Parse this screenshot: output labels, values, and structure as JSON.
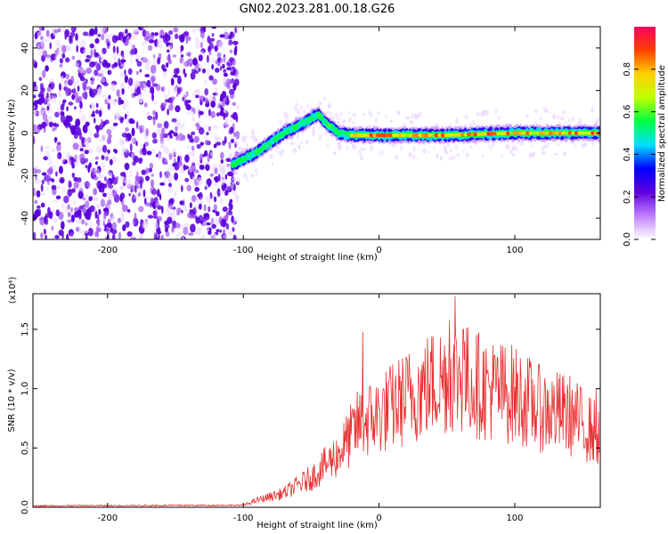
{
  "figure_title": "GN02.2023.281.00.18.G26",
  "colors": {
    "snr_line": "#e83030",
    "axis": "#000000",
    "noise_low": "#e8d4ff",
    "noise_high": "#5a00dc"
  },
  "chart_data": [
    {
      "type": "heatmap",
      "xlabel": "Height of straight line (km)",
      "ylabel": "Frequency (Hz)",
      "xlim": [
        -255,
        163
      ],
      "ylim": [
        -50,
        50
      ],
      "xticks": [
        -200,
        -100,
        0,
        100
      ],
      "yticks": [
        -40,
        -20,
        0,
        20,
        40
      ],
      "grid": false,
      "signal_ridge": [
        {
          "x": -108,
          "y": -15
        },
        {
          "x": -90,
          "y": -9
        },
        {
          "x": -70,
          "y": 0
        },
        {
          "x": -55,
          "y": 5
        },
        {
          "x": -45,
          "y": 9
        },
        {
          "x": -38,
          "y": 4
        },
        {
          "x": -30,
          "y": 0
        },
        {
          "x": -20,
          "y": -1
        },
        {
          "x": 0,
          "y": -1
        },
        {
          "x": 50,
          "y": -1
        },
        {
          "x": 100,
          "y": 0
        },
        {
          "x": 163,
          "y": 0
        }
      ],
      "noise_region_xmax": -108,
      "colorbar": {
        "label": "Normalized spectral amplitude",
        "range": [
          0.0,
          1.0
        ],
        "ticks": [
          0.0,
          0.2,
          0.4,
          0.6,
          0.8
        ],
        "tick_labels": [
          "0.0",
          "0.2",
          "0.4",
          "0.6",
          "0.8"
        ],
        "colormap": [
          "#ffffff",
          "#c080ff",
          "#6000e0",
          "#0000ff",
          "#00e0ff",
          "#00ff40",
          "#c0ff00",
          "#ffd000",
          "#ff4000",
          "#ff0060"
        ]
      }
    },
    {
      "type": "line",
      "xlabel": "Height of straight line (km)",
      "ylabel": "SNR (10 * v/v)",
      "y_multiplier": "(x10⁴)",
      "xlim": [
        -255,
        163
      ],
      "ylim": [
        0,
        1.8
      ],
      "xticks": [
        -200,
        -100,
        0,
        100
      ],
      "yticks": [
        0.0,
        0.5,
        1.0,
        1.5
      ],
      "ytick_labels": [
        "0.0",
        "0.5",
        "1.0",
        "1.5"
      ],
      "grid": false,
      "envelope": [
        {
          "x": -255,
          "y": 0.01
        },
        {
          "x": -100,
          "y": 0.015
        },
        {
          "x": -90,
          "y": 0.06
        },
        {
          "x": -70,
          "y": 0.12
        },
        {
          "x": -50,
          "y": 0.25
        },
        {
          "x": -30,
          "y": 0.45
        },
        {
          "x": -15,
          "y": 0.7
        },
        {
          "x": 0,
          "y": 0.78
        },
        {
          "x": 20,
          "y": 0.92
        },
        {
          "x": 40,
          "y": 1.05
        },
        {
          "x": 55,
          "y": 1.12
        },
        {
          "x": 80,
          "y": 1.0
        },
        {
          "x": 100,
          "y": 0.95
        },
        {
          "x": 120,
          "y": 0.82
        },
        {
          "x": 140,
          "y": 0.78
        },
        {
          "x": 163,
          "y": 0.6
        }
      ],
      "peak": {
        "x": 56,
        "y": 1.78
      },
      "spikes": [
        {
          "x": -12,
          "y": 1.48
        },
        {
          "x": 52,
          "y": 1.58
        },
        {
          "x": 56,
          "y": 1.78
        },
        {
          "x": 62,
          "y": 1.5
        },
        {
          "x": 160,
          "y": 1.0
        }
      ]
    }
  ]
}
